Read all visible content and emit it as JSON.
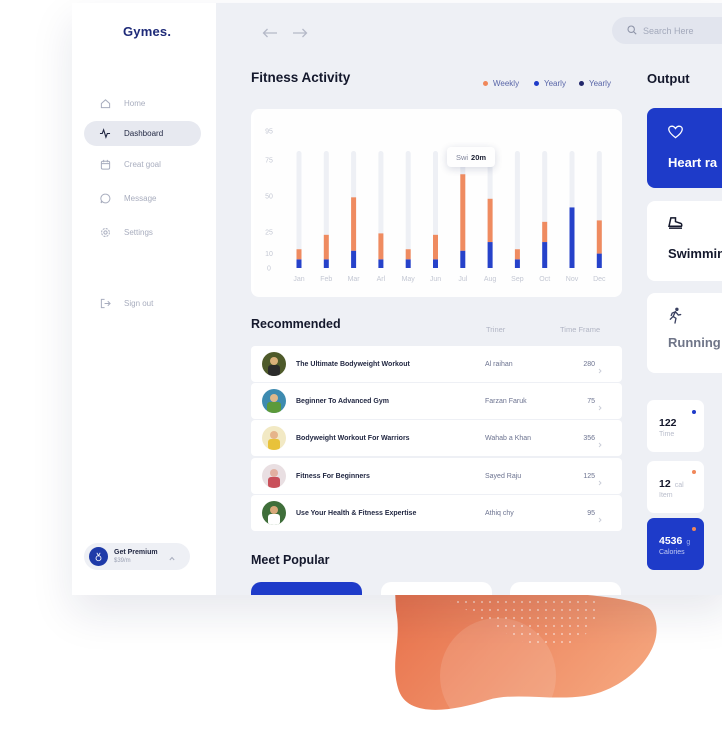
{
  "app": {
    "logo": "Gymes."
  },
  "sidebar": {
    "items": [
      {
        "label": "Home",
        "icon": "home-icon",
        "active": false
      },
      {
        "label": "Dashboard",
        "icon": "activity-icon",
        "active": true
      },
      {
        "label": "Creat goal",
        "icon": "calendar-icon",
        "active": false
      },
      {
        "label": "Message",
        "icon": "message-icon",
        "active": false
      },
      {
        "label": "Settings",
        "icon": "gear-icon",
        "active": false
      },
      {
        "label": "Sign out",
        "icon": "sign-out-icon",
        "active": false
      }
    ],
    "premium": {
      "title": "Get Premium",
      "price": "$39/m",
      "icon": "medal-icon"
    }
  },
  "topbar": {
    "search_placeholder": "Search Here"
  },
  "activity": {
    "title": "Fitness Activity",
    "legend": [
      {
        "label": "Weekly",
        "color": "#f0875a"
      },
      {
        "label": "Yearly",
        "color": "#1e3bc9"
      },
      {
        "label": "Yearly",
        "color": "#22276b"
      }
    ],
    "tooltip": {
      "prefix": "Swi",
      "value": "20m"
    }
  },
  "chart_data": {
    "type": "bar",
    "stacked": true,
    "categories": [
      "Jan",
      "Feb",
      "Mar",
      "Arl",
      "May",
      "Jun",
      "Jul",
      "Aug",
      "Sep",
      "Oct",
      "Nov",
      "Dec"
    ],
    "yticks": [
      0,
      10,
      25,
      50,
      75,
      95
    ],
    "series": [
      {
        "name": "Yearly",
        "color": "#1e3bc9",
        "values": [
          6,
          6,
          12,
          6,
          6,
          6,
          12,
          18,
          6,
          18,
          42,
          10
        ]
      },
      {
        "name": "Weekly",
        "color": "#f0875a",
        "values": [
          7,
          17,
          37,
          18,
          7,
          17,
          53,
          30,
          7,
          14,
          0,
          23
        ]
      }
    ],
    "highlight_index": 6,
    "grid": false
  },
  "recommended": {
    "title": "Recommended",
    "col_trainer": "Triner",
    "col_time": "Time Frame",
    "rows": [
      {
        "name": "The Ultimate Bodyweight Workout",
        "trainer": "Al raihan",
        "time": "280"
      },
      {
        "name": "Beginner To Advanced Gym",
        "trainer": "Farzan Faruk",
        "time": "75"
      },
      {
        "name": "Bodyweight Workout For Warriors",
        "trainer": "Wahab a Khan",
        "time": "356"
      },
      {
        "name": "Fitness For Beginners",
        "trainer": "Sayed Raju",
        "time": "125"
      },
      {
        "name": "Use Your Health & Fitness Expertise",
        "trainer": "Athiq chy",
        "time": "95"
      }
    ]
  },
  "popular": {
    "title": "Meet Popular"
  },
  "output": {
    "title": "Output",
    "cards": [
      {
        "label": "Heart ra",
        "icon": "heart-icon"
      },
      {
        "label": "Swimmin",
        "icon": "shoe-icon"
      },
      {
        "label": "Running",
        "icon": "running-icon"
      }
    ],
    "stats": [
      {
        "value": "122",
        "unit": "",
        "label": "Time",
        "dot": "#1e3bc9"
      },
      {
        "value": "12",
        "unit": "cal",
        "label": "Item",
        "dot": "#f0875a"
      },
      {
        "value": "4536",
        "unit": "g",
        "label": "Calories",
        "dot": "#f0875a"
      }
    ]
  }
}
